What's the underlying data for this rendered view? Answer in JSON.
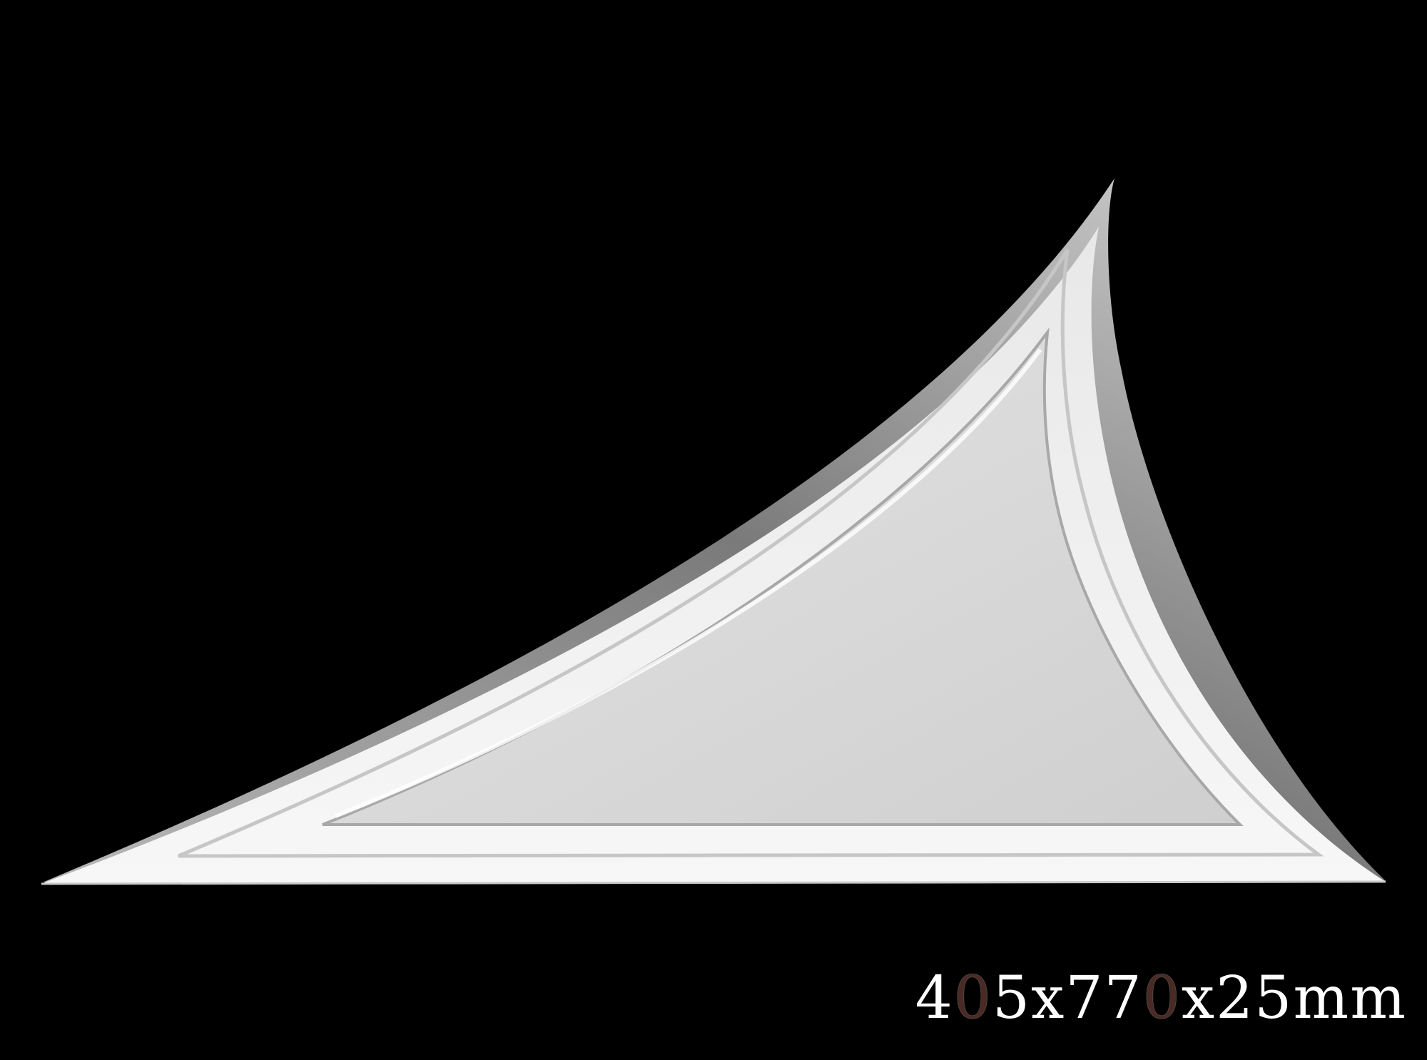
{
  "background_color": "#000000",
  "panel": {
    "outer_color": "#f2f2f2",
    "rim_shadow_color": "#6e6e6e",
    "inner_panel_color": "#d4d4d4"
  },
  "dimensions_label": {
    "part1": "4",
    "accent1": "0",
    "part2": "5x77",
    "accent2": "0",
    "part3": "x25mm",
    "text_color": "#ffffff",
    "accent_color": "#4a2a24"
  }
}
